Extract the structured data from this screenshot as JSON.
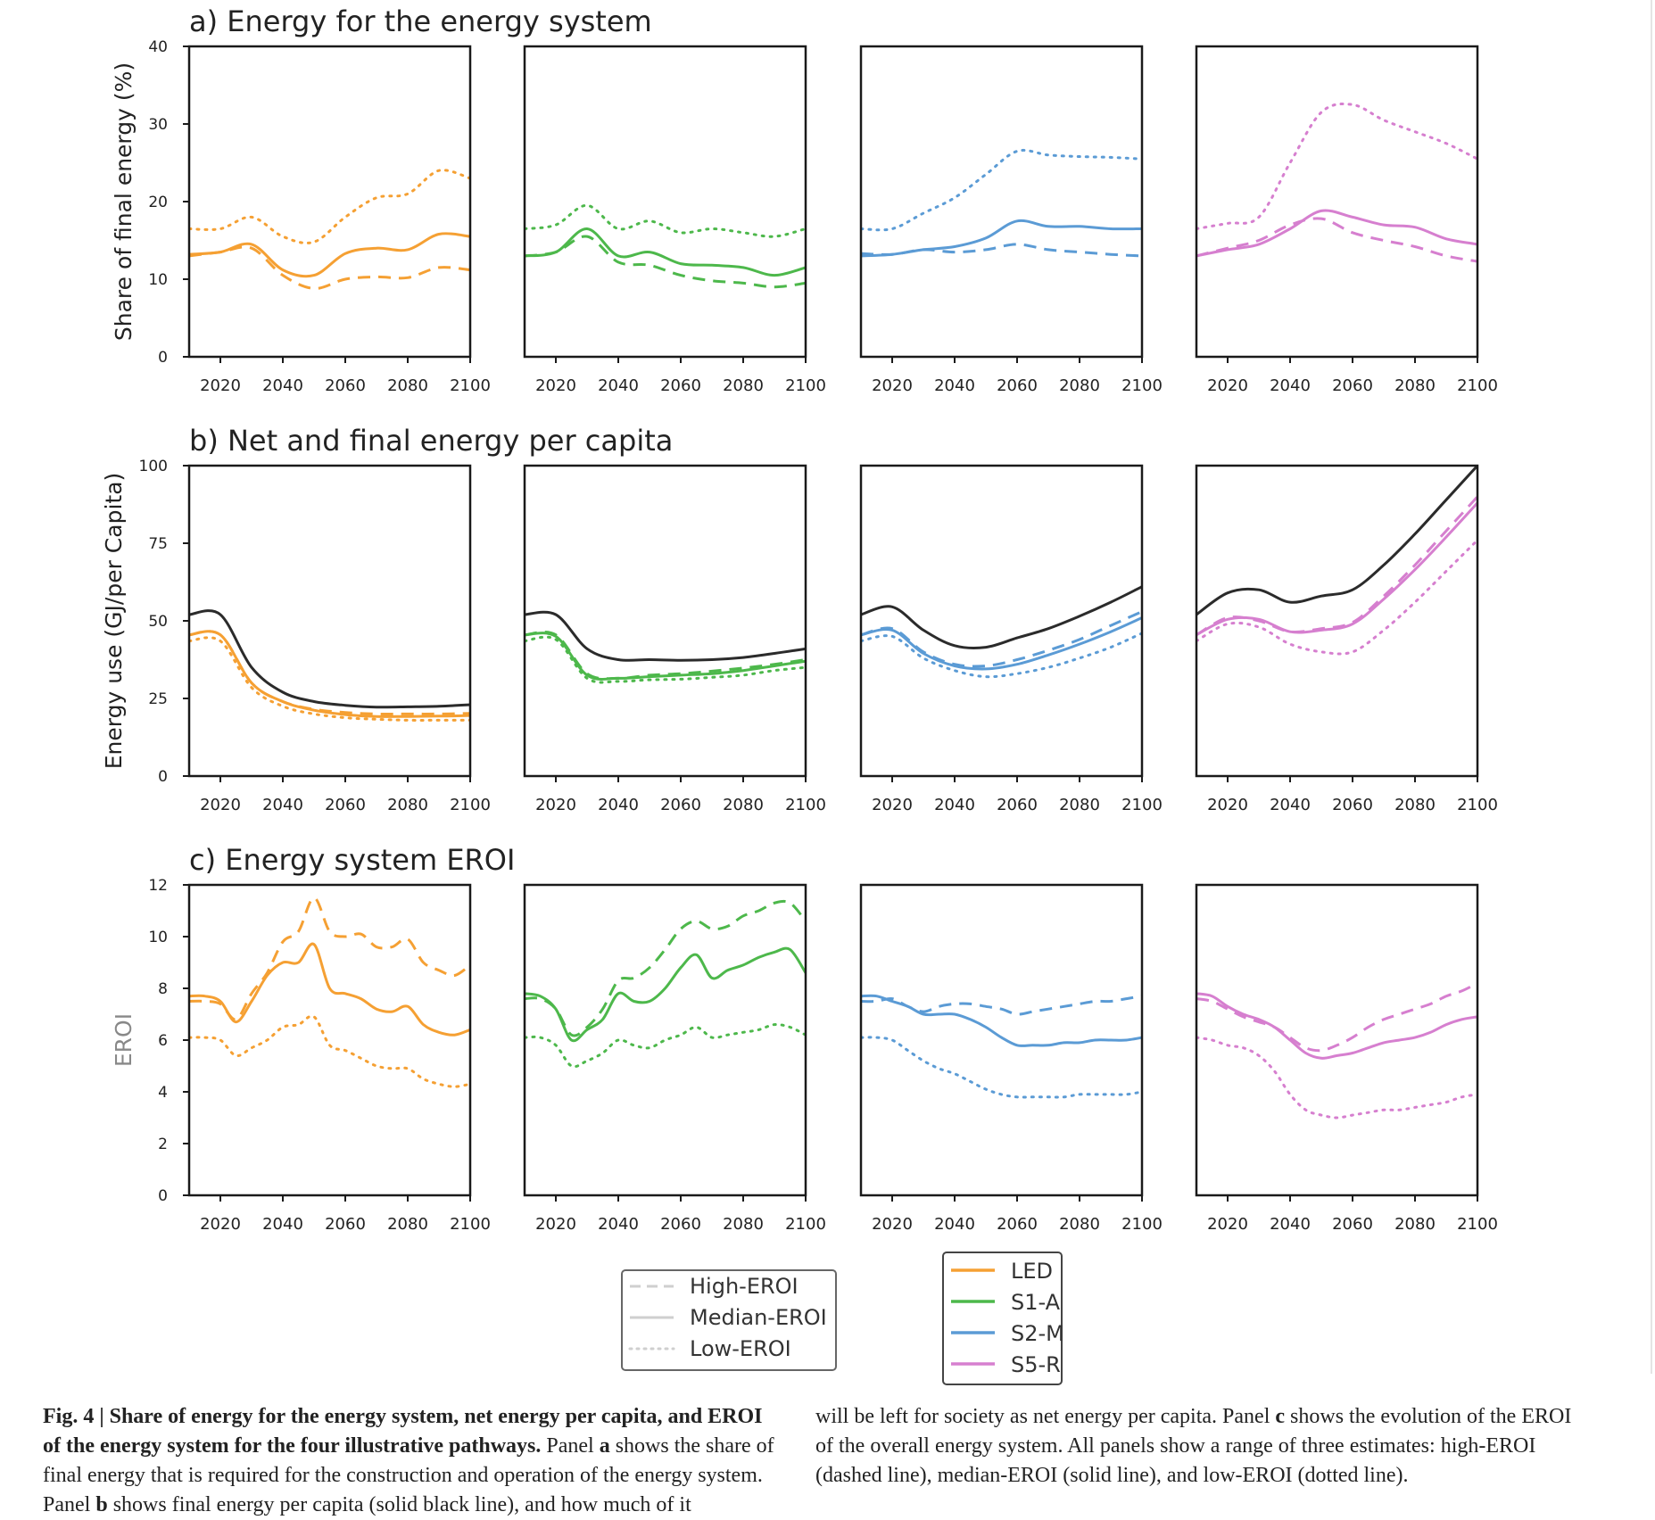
{
  "rows": [
    {
      "title": "a) Energy for the energy system",
      "ylabel": "Share of final energy (%)",
      "ylim": [
        0,
        40
      ],
      "yticks": [
        "0",
        "10",
        "20",
        "30",
        "40"
      ]
    },
    {
      "title": "b) Net and final energy per capita",
      "ylabel": "Energy use (GJ/per Capita)",
      "ylim": [
        0,
        100
      ],
      "yticks": [
        "0",
        "25",
        "50",
        "75",
        "100"
      ]
    },
    {
      "title": "c) Energy system EROI",
      "ylabel": "EROI",
      "ylim": [
        0,
        12
      ],
      "yticks": [
        "0",
        "2",
        "4",
        "6",
        "8",
        "10",
        "12"
      ]
    }
  ],
  "xticks": [
    "2020",
    "2040",
    "2060",
    "2080",
    "2100"
  ],
  "xlim": [
    2010,
    2100
  ],
  "legend_styles": [
    {
      "label": "High-EROI",
      "style": "dashed"
    },
    {
      "label": "Median-EROI",
      "style": "solid"
    },
    {
      "label": "Low-EROI",
      "style": "dotted"
    }
  ],
  "legend_pathways": [
    {
      "label": "LED",
      "color": "#f5a033"
    },
    {
      "label": "S1-A",
      "color": "#4db84b"
    },
    {
      "label": "S2-M",
      "color": "#5b9bd5"
    },
    {
      "label": "S5-R",
      "color": "#d67fcf"
    }
  ],
  "colors": {
    "LED": "#f5a033",
    "S1-A": "#4db84b",
    "S2-M": "#5b9bd5",
    "S5-R": "#d67fcf",
    "final": "#2b2b2b"
  },
  "chart_data": [
    {
      "type": "line",
      "title": "a) Energy for the energy system",
      "ylabel": "Share of final energy (%)",
      "x": [
        2010,
        2020,
        2030,
        2040,
        2050,
        2060,
        2070,
        2080,
        2090,
        2100
      ],
      "panels": [
        {
          "pathway": "LED",
          "series": [
            {
              "name": "High-EROI",
              "values": [
                13,
                13.5,
                14,
                10.5,
                8.8,
                10,
                10.3,
                10.2,
                11.5,
                11.2
              ]
            },
            {
              "name": "Median-EROI",
              "values": [
                13.2,
                13.5,
                14.5,
                11.2,
                10.5,
                13.3,
                14,
                13.8,
                15.8,
                15.5
              ]
            },
            {
              "name": "Low-EROI",
              "values": [
                16.5,
                16.5,
                18,
                15.5,
                14.8,
                18,
                20.5,
                21,
                24,
                23
              ]
            }
          ]
        },
        {
          "pathway": "S1-A",
          "series": [
            {
              "name": "High-EROI",
              "values": [
                13,
                13.5,
                15.5,
                12.2,
                11.8,
                10.5,
                9.8,
                9.5,
                9,
                9.5
              ]
            },
            {
              "name": "Median-EROI",
              "values": [
                13,
                13.5,
                16.5,
                13,
                13.5,
                12,
                11.8,
                11.5,
                10.5,
                11.5
              ]
            },
            {
              "name": "Low-EROI",
              "values": [
                16.5,
                17,
                19.5,
                16.5,
                17.5,
                16,
                16.5,
                16,
                15.5,
                16.5
              ]
            }
          ]
        },
        {
          "pathway": "S2-M",
          "series": [
            {
              "name": "High-EROI",
              "values": [
                13.3,
                13.2,
                13.8,
                13.5,
                13.8,
                14.5,
                13.8,
                13.5,
                13.2,
                13
              ]
            },
            {
              "name": "Median-EROI",
              "values": [
                13,
                13.2,
                13.8,
                14.2,
                15.3,
                17.5,
                16.8,
                16.8,
                16.5,
                16.5
              ]
            },
            {
              "name": "Low-EROI",
              "values": [
                16.5,
                16.5,
                18.5,
                20.5,
                23.5,
                26.5,
                26,
                25.8,
                25.7,
                25.5
              ]
            }
          ]
        },
        {
          "pathway": "S5-R",
          "series": [
            {
              "name": "High-EROI",
              "values": [
                13,
                14,
                15,
                17,
                17.8,
                16,
                15,
                14.2,
                13,
                12.3
              ]
            },
            {
              "name": "Median-EROI",
              "values": [
                13,
                13.8,
                14.5,
                16.5,
                18.8,
                18,
                17,
                16.7,
                15.2,
                14.5
              ]
            },
            {
              "name": "Low-EROI",
              "values": [
                16.5,
                17.2,
                18,
                25,
                31.5,
                32.5,
                30.5,
                29,
                27.5,
                25.5
              ]
            }
          ]
        }
      ]
    },
    {
      "type": "line",
      "title": "b) Net and final energy per capita",
      "ylabel": "Energy use (GJ/per Capita)",
      "x": [
        2010,
        2020,
        2030,
        2040,
        2050,
        2060,
        2070,
        2080,
        2090,
        2100
      ],
      "panels": [
        {
          "pathway": "LED",
          "series": [
            {
              "name": "Final energy",
              "values": [
                52,
                52,
                35,
                27,
                24,
                22.8,
                22.2,
                22.3,
                22.5,
                23
              ]
            },
            {
              "name": "High-EROI",
              "values": [
                45.5,
                45.5,
                30,
                24,
                21.5,
                20.5,
                20,
                20,
                20,
                20.2
              ]
            },
            {
              "name": "Median-EROI",
              "values": [
                45.5,
                45.5,
                30,
                24,
                21.2,
                19.8,
                19.2,
                19.2,
                19.3,
                19.5
              ]
            },
            {
              "name": "Low-EROI",
              "values": [
                43.5,
                43.5,
                28.5,
                22.5,
                20,
                18.8,
                18.3,
                18,
                18,
                18
              ]
            }
          ]
        },
        {
          "pathway": "S1-A",
          "series": [
            {
              "name": "Final energy",
              "values": [
                52,
                52,
                41,
                37.5,
                37.5,
                37.3,
                37.5,
                38.2,
                39.5,
                41
              ]
            },
            {
              "name": "High-EROI",
              "values": [
                45.5,
                45.5,
                33,
                31.5,
                32.5,
                33,
                33.8,
                34.8,
                36,
                37.5
              ]
            },
            {
              "name": "Median-EROI",
              "values": [
                45.5,
                45,
                32.5,
                31.5,
                32,
                32.5,
                33,
                34,
                35.5,
                37
              ]
            },
            {
              "name": "Low-EROI",
              "values": [
                43.5,
                44,
                31.5,
                30.5,
                31,
                31.2,
                31.8,
                32.5,
                34,
                35
              ]
            }
          ]
        },
        {
          "pathway": "S2-M",
          "series": [
            {
              "name": "Final energy",
              "values": [
                52,
                54.5,
                47,
                42,
                41.5,
                44.5,
                47.5,
                51.5,
                56,
                61
              ]
            },
            {
              "name": "High-EROI",
              "values": [
                45.5,
                47.5,
                40,
                36,
                35.5,
                37.5,
                40.5,
                44,
                48.5,
                53
              ]
            },
            {
              "name": "Median-EROI",
              "values": [
                45.5,
                47,
                39.5,
                35.5,
                34.5,
                36,
                39,
                42.5,
                46.5,
                51
              ]
            },
            {
              "name": "Low-EROI",
              "values": [
                43.5,
                45,
                38,
                34,
                32,
                33,
                35,
                38,
                41.5,
                46
              ]
            }
          ]
        },
        {
          "pathway": "S5-R",
          "series": [
            {
              "name": "Final energy",
              "values": [
                52,
                59,
                60,
                56,
                58,
                60,
                68,
                78,
                89,
                100
              ]
            },
            {
              "name": "High-EROI",
              "values": [
                45.5,
                51,
                50,
                46.5,
                47.5,
                49.5,
                58,
                68,
                79,
                90
              ]
            },
            {
              "name": "Median-EROI",
              "values": [
                45.5,
                50.5,
                50.5,
                46.5,
                47,
                49,
                57,
                66.5,
                77,
                88
              ]
            },
            {
              "name": "Low-EROI",
              "values": [
                43.5,
                49,
                48,
                42.5,
                40,
                40,
                47,
                56,
                66,
                76
              ]
            }
          ]
        }
      ]
    },
    {
      "type": "line",
      "title": "c) Energy system EROI",
      "ylabel": "EROI",
      "x": [
        2010,
        2015,
        2020,
        2025,
        2030,
        2035,
        2040,
        2045,
        2050,
        2055,
        2060,
        2065,
        2070,
        2075,
        2080,
        2085,
        2090,
        2095,
        2100
      ],
      "panels": [
        {
          "pathway": "LED",
          "series": [
            {
              "name": "High-EROI",
              "values": [
                7.5,
                7.5,
                7.4,
                6.8,
                7.8,
                8.6,
                9.8,
                10.2,
                11.5,
                10.2,
                10,
                10.1,
                9.6,
                9.6,
                9.9,
                9,
                8.7,
                8.5,
                8.9
              ]
            },
            {
              "name": "Median-EROI",
              "values": [
                7.7,
                7.7,
                7.5,
                6.7,
                7.5,
                8.5,
                9,
                9,
                9.7,
                8,
                7.8,
                7.6,
                7.2,
                7.1,
                7.3,
                6.6,
                6.3,
                6.2,
                6.4
              ]
            },
            {
              "name": "Low-EROI",
              "values": [
                6.1,
                6.1,
                6,
                5.4,
                5.7,
                6,
                6.5,
                6.6,
                6.9,
                5.8,
                5.6,
                5.3,
                5,
                4.9,
                4.9,
                4.5,
                4.3,
                4.2,
                4.3
              ]
            }
          ]
        },
        {
          "pathway": "S1-A",
          "series": [
            {
              "name": "High-EROI",
              "values": [
                7.6,
                7.6,
                7.2,
                6.2,
                6.5,
                7.2,
                8.3,
                8.4,
                8.8,
                9.5,
                10.3,
                10.6,
                10.3,
                10.4,
                10.8,
                11,
                11.3,
                11.3,
                10.6
              ]
            },
            {
              "name": "Median-EROI",
              "values": [
                7.8,
                7.7,
                7.2,
                6,
                6.4,
                6.8,
                7.8,
                7.5,
                7.5,
                8,
                8.8,
                9.3,
                8.4,
                8.7,
                8.9,
                9.2,
                9.4,
                9.5,
                8.6
              ]
            },
            {
              "name": "Low-EROI",
              "values": [
                6.1,
                6.1,
                5.8,
                5,
                5.2,
                5.5,
                6,
                5.8,
                5.7,
                6,
                6.2,
                6.5,
                6.1,
                6.2,
                6.3,
                6.4,
                6.6,
                6.5,
                6.2
              ]
            }
          ]
        },
        {
          "pathway": "S2-M",
          "series": [
            {
              "name": "High-EROI",
              "values": [
                7.5,
                7.5,
                7.6,
                7.3,
                7.1,
                7.3,
                7.4,
                7.4,
                7.3,
                7.2,
                7,
                7.1,
                7.2,
                7.3,
                7.4,
                7.5,
                7.5,
                7.6,
                7.7
              ]
            },
            {
              "name": "Median-EROI",
              "values": [
                7.7,
                7.7,
                7.5,
                7.3,
                7,
                7,
                7,
                6.8,
                6.5,
                6.1,
                5.8,
                5.8,
                5.8,
                5.9,
                5.9,
                6,
                6,
                6,
                6.1
              ]
            },
            {
              "name": "Low-EROI",
              "values": [
                6.1,
                6.1,
                6,
                5.6,
                5.2,
                4.9,
                4.7,
                4.4,
                4.1,
                3.9,
                3.8,
                3.8,
                3.8,
                3.8,
                3.9,
                3.9,
                3.9,
                3.9,
                4
              ]
            }
          ]
        },
        {
          "pathway": "S5-R",
          "series": [
            {
              "name": "High-EROI",
              "values": [
                7.6,
                7.5,
                7.2,
                6.9,
                6.7,
                6.5,
                6.1,
                5.7,
                5.6,
                5.8,
                6.1,
                6.5,
                6.8,
                7,
                7.2,
                7.4,
                7.7,
                7.9,
                8.2
              ]
            },
            {
              "name": "Median-EROI",
              "values": [
                7.8,
                7.7,
                7.3,
                7,
                6.8,
                6.5,
                6,
                5.5,
                5.3,
                5.4,
                5.5,
                5.7,
                5.9,
                6,
                6.1,
                6.3,
                6.6,
                6.8,
                6.9
              ]
            },
            {
              "name": "Low-EROI",
              "values": [
                6.1,
                6,
                5.8,
                5.7,
                5.4,
                4.8,
                3.9,
                3.3,
                3.1,
                3,
                3.1,
                3.2,
                3.3,
                3.3,
                3.4,
                3.5,
                3.6,
                3.8,
                3.9
              ]
            }
          ]
        }
      ]
    }
  ],
  "caption": {
    "left_bold": "Fig. 4 | Share of energy for the energy system, net energy per capita, and EROI of the energy system for the four illustrative pathways.",
    "left_text_1": " Panel ",
    "left_bold_a": "a",
    "left_text_2": " shows the share of final energy that is required for the construction and operation of the energy system. Panel ",
    "left_bold_b": "b",
    "left_text_3": " shows final energy per capita (solid black line), and how much of it",
    "right_text_1": "will be left for society as net energy per capita. Panel ",
    "right_bold_c": "c",
    "right_text_2": " shows the evolution of the EROI of the overall energy system. All panels show a range of three estimates: high-EROI (dashed line), median-EROI (solid line), and low-EROI (dotted line)."
  }
}
